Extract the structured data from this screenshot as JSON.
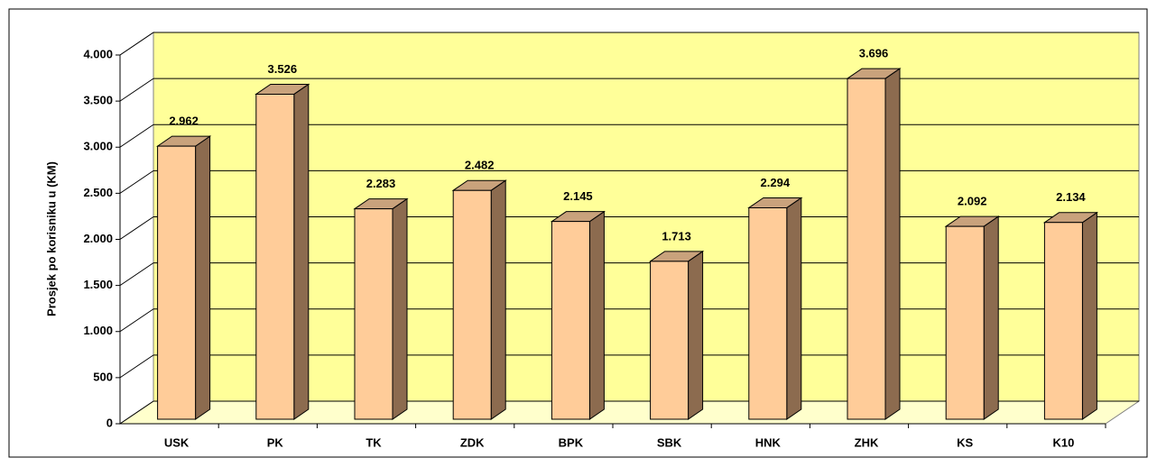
{
  "chart_data": {
    "type": "bar3d",
    "y_axis_label": "Prosjek po korisniku u (KM)",
    "categories": [
      "USK",
      "PK",
      "TK",
      "ZDK",
      "BPK",
      "SBK",
      "HNK",
      "ZHK",
      "KS",
      "K10"
    ],
    "values": [
      2962,
      3526,
      2283,
      2482,
      2145,
      1713,
      2294,
      3696,
      2092,
      2134
    ],
    "value_labels": [
      "2.962",
      "3.526",
      "2.283",
      "2.482",
      "2.145",
      "1.713",
      "2.294",
      "3.696",
      "2.092",
      "2.134"
    ],
    "color": "#ffcc99",
    "ylim": [
      0,
      4000
    ],
    "yticks": [
      0,
      500,
      {
        "value": 1000,
        "label": "1.000"
      },
      {
        "value": 1500,
        "label": "1.500"
      },
      {
        "value": 2000,
        "label": "2.000"
      },
      {
        "value": 2500,
        "label": "2.500"
      },
      {
        "value": 3000,
        "label": "3.000"
      },
      {
        "value": 3500,
        "label": "3.500"
      },
      {
        "value": 4000,
        "label": "4.000"
      }
    ],
    "grid": true
  }
}
